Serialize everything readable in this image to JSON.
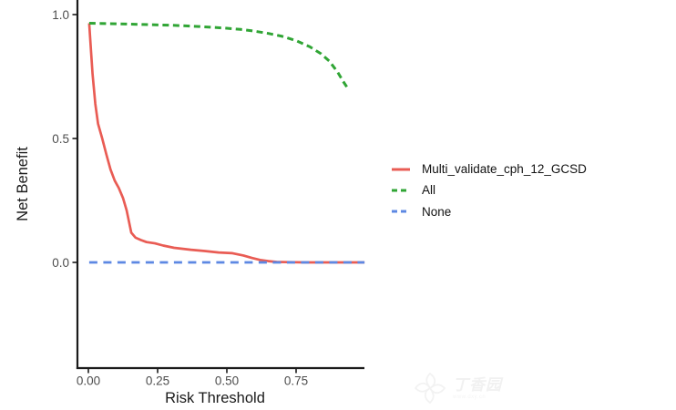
{
  "chart_data": {
    "type": "line",
    "title": "",
    "xlabel": "Risk Threshold",
    "ylabel": "Net Benefit",
    "xlim": [
      -0.04,
      1.0
    ],
    "ylim": [
      -0.43,
      1.06
    ],
    "grid": false,
    "legend_position": "right-outside",
    "x_ticks": [
      {
        "value": 0.0,
        "label": "0.00"
      },
      {
        "value": 0.25,
        "label": "0.25"
      },
      {
        "value": 0.5,
        "label": "0.50"
      },
      {
        "value": 0.75,
        "label": "0.75"
      }
    ],
    "y_ticks": [
      {
        "value": 0.0,
        "label": "0.0"
      },
      {
        "value": 0.5,
        "label": "0.5"
      },
      {
        "value": 1.0,
        "label": "1.0"
      }
    ],
    "series": [
      {
        "name": "Multi_validate_cph_12_GCSD",
        "color": "#e95c54",
        "linestyle": "solid",
        "points": [
          [
            0.003,
            0.965
          ],
          [
            0.008,
            0.88
          ],
          [
            0.015,
            0.76
          ],
          [
            0.025,
            0.64
          ],
          [
            0.035,
            0.56
          ],
          [
            0.05,
            0.5
          ],
          [
            0.065,
            0.435
          ],
          [
            0.08,
            0.375
          ],
          [
            0.095,
            0.33
          ],
          [
            0.11,
            0.3
          ],
          [
            0.125,
            0.26
          ],
          [
            0.138,
            0.21
          ],
          [
            0.155,
            0.12
          ],
          [
            0.17,
            0.1
          ],
          [
            0.19,
            0.09
          ],
          [
            0.21,
            0.082
          ],
          [
            0.24,
            0.077
          ],
          [
            0.27,
            0.068
          ],
          [
            0.31,
            0.059
          ],
          [
            0.37,
            0.051
          ],
          [
            0.42,
            0.046
          ],
          [
            0.47,
            0.04
          ],
          [
            0.52,
            0.037
          ],
          [
            0.56,
            0.028
          ],
          [
            0.59,
            0.018
          ],
          [
            0.62,
            0.01
          ],
          [
            0.65,
            0.005
          ],
          [
            0.68,
            0.002
          ],
          [
            0.72,
            0.001
          ],
          [
            0.78,
            0.0
          ],
          [
            0.9,
            0.0
          ],
          [
            0.997,
            0.0
          ]
        ]
      },
      {
        "name": "All",
        "color": "#30a535",
        "linestyle": "dashed",
        "points": [
          [
            0.003,
            0.965
          ],
          [
            0.1,
            0.963
          ],
          [
            0.2,
            0.96
          ],
          [
            0.3,
            0.957
          ],
          [
            0.4,
            0.952
          ],
          [
            0.5,
            0.945
          ],
          [
            0.55,
            0.94
          ],
          [
            0.6,
            0.933
          ],
          [
            0.65,
            0.924
          ],
          [
            0.7,
            0.912
          ],
          [
            0.75,
            0.895
          ],
          [
            0.8,
            0.87
          ],
          [
            0.84,
            0.842
          ],
          [
            0.87,
            0.812
          ],
          [
            0.9,
            0.768
          ],
          [
            0.92,
            0.73
          ],
          [
            0.935,
            0.705
          ]
        ]
      },
      {
        "name": "None",
        "color": "#5d88e3",
        "linestyle": "longdash",
        "points": [
          [
            0.003,
            0.0
          ],
          [
            0.997,
            0.0
          ]
        ]
      }
    ]
  },
  "watermark": {
    "text": "丁香园",
    "subtext": "www.dxy.cn"
  }
}
